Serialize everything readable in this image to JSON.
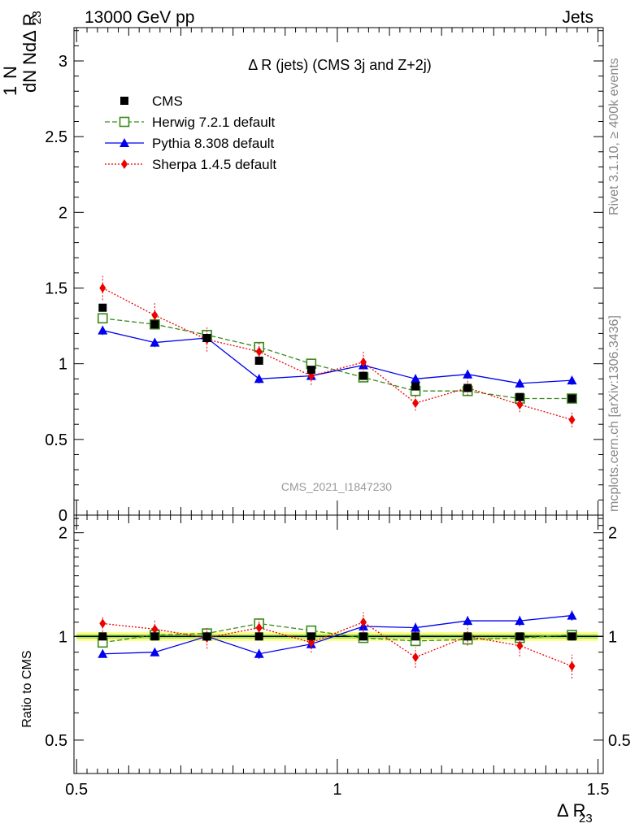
{
  "header": {
    "left": "13000 GeV pp",
    "right": "Jets"
  },
  "side": {
    "top": "Rivet 3.1.10, ≥ 400k events",
    "bottom": "mcplots.cern.ch [arXiv:1306.3436]"
  },
  "chart_data": {
    "type": "line",
    "title": "Δ R (jets) (CMS 3j and Z+2j)",
    "xlabel": "Δ R",
    "xlabel_sub": "23",
    "ylabel_num": "dN",
    "ylabel_den": "NdΔ R",
    "ylabel_den_sub": "23",
    "ylabel_prefactor": "1",
    "ratio_ylabel": "Ratio to CMS",
    "watermark": "CMS_2021_I1847230",
    "xlim": [
      0.495,
      1.51
    ],
    "ylim": [
      0,
      3.22
    ],
    "ratio_ylim": [
      0.4,
      2.25
    ],
    "x_ticks": [
      "0.5",
      "1",
      "1.5"
    ],
    "y_ticks": [
      "0",
      "0.5",
      "1",
      "1.5",
      "2",
      "2.5",
      "3"
    ],
    "ratio_y_ticks": [
      "0.5",
      "1",
      "2"
    ],
    "x": [
      0.55,
      0.65,
      0.75,
      0.85,
      0.95,
      1.05,
      1.15,
      1.25,
      1.35,
      1.45
    ],
    "legend": [
      "CMS",
      "Herwig 7.2.1 default",
      "Pythia 8.308 default",
      "Sherpa 1.4.5 default"
    ],
    "series": [
      {
        "name": "CMS",
        "color": "#000000",
        "marker": "square",
        "values": [
          1.37,
          1.26,
          1.17,
          1.02,
          0.96,
          0.92,
          0.85,
          0.84,
          0.78,
          0.77
        ],
        "errors": [
          0.02,
          0.02,
          0.02,
          0.02,
          0.02,
          0.02,
          0.02,
          0.02,
          0.02,
          0.02
        ],
        "ratio": [
          1,
          1,
          1,
          1,
          1,
          1,
          1,
          1,
          1,
          1
        ]
      },
      {
        "name": "Herwig 7.2.1 default",
        "color": "#3a8a1a",
        "marker": "open-square",
        "values": [
          1.3,
          1.26,
          1.19,
          1.11,
          1.0,
          0.91,
          0.82,
          0.82,
          0.77,
          0.77
        ],
        "errors": [
          0.02,
          0.02,
          0.02,
          0.02,
          0.02,
          0.02,
          0.02,
          0.02,
          0.02,
          0.02
        ],
        "ratio": [
          0.96,
          1.01,
          1.02,
          1.09,
          1.04,
          0.99,
          0.97,
          0.98,
          0.99,
          1.01
        ]
      },
      {
        "name": "Pythia 8.308 default",
        "color": "#0000ee",
        "marker": "triangle",
        "values": [
          1.22,
          1.14,
          1.17,
          0.9,
          0.92,
          0.99,
          0.9,
          0.93,
          0.87,
          0.89
        ],
        "errors": [
          0.03,
          0.03,
          0.03,
          0.03,
          0.03,
          0.03,
          0.03,
          0.03,
          0.03,
          0.03
        ],
        "ratio": [
          0.89,
          0.9,
          1.0,
          0.89,
          0.95,
          1.07,
          1.06,
          1.11,
          1.11,
          1.15
        ]
      },
      {
        "name": "Sherpa 1.4.5 default",
        "color": "#ee0000",
        "marker": "diamond",
        "values": [
          1.5,
          1.32,
          1.16,
          1.08,
          0.92,
          1.01,
          0.74,
          0.84,
          0.73,
          0.63
        ],
        "errors": [
          0.08,
          0.08,
          0.08,
          0.06,
          0.06,
          0.07,
          0.05,
          0.05,
          0.05,
          0.05
        ],
        "ratio": [
          1.09,
          1.05,
          0.99,
          1.06,
          0.96,
          1.1,
          0.87,
          1.0,
          0.94,
          0.82
        ]
      }
    ]
  }
}
